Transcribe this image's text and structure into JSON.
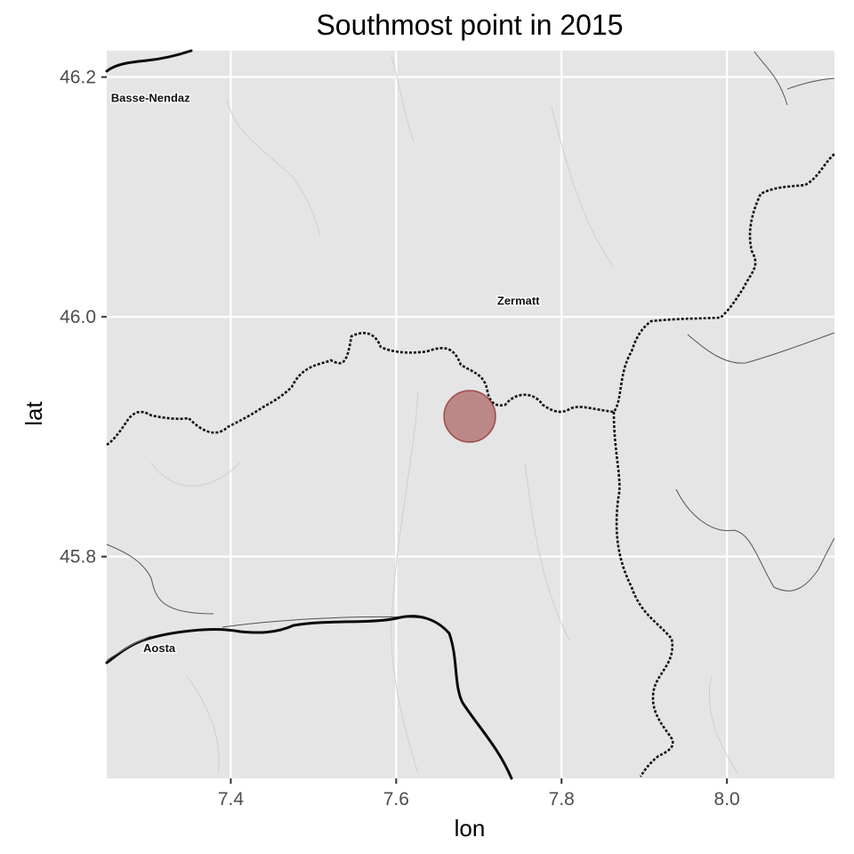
{
  "title": "Southmost point in 2015",
  "xlabel": "lon",
  "ylabel": "lat",
  "x_ticks": [
    7.4,
    7.6,
    7.8,
    8.0
  ],
  "x_tick_labels": [
    "7.4",
    "7.6",
    "7.8",
    "8.0"
  ],
  "y_ticks": [
    45.8,
    46.0,
    46.2
  ],
  "y_tick_labels": [
    "45.8",
    "46.0",
    "46.2"
  ],
  "xlim": [
    7.25,
    8.13
  ],
  "ylim": [
    45.615,
    46.222
  ],
  "place_labels": [
    {
      "name": "Basse-Nendaz",
      "lon": 7.253,
      "lat": 46.183
    },
    {
      "name": "Zermatt",
      "lon": 7.72,
      "lat": 46.014
    },
    {
      "name": "Aosta",
      "lon": 7.292,
      "lat": 45.724
    }
  ],
  "points": [
    {
      "lon": 7.689,
      "lat": 45.917
    }
  ],
  "colors": {
    "panel": "#e5e5e5",
    "grid": "#ffffff",
    "point_fill": "#9b3a3a",
    "point_stroke": "#8b2020",
    "border_line": "#111111",
    "road": "#0a0a0a",
    "river": "#555555"
  }
}
